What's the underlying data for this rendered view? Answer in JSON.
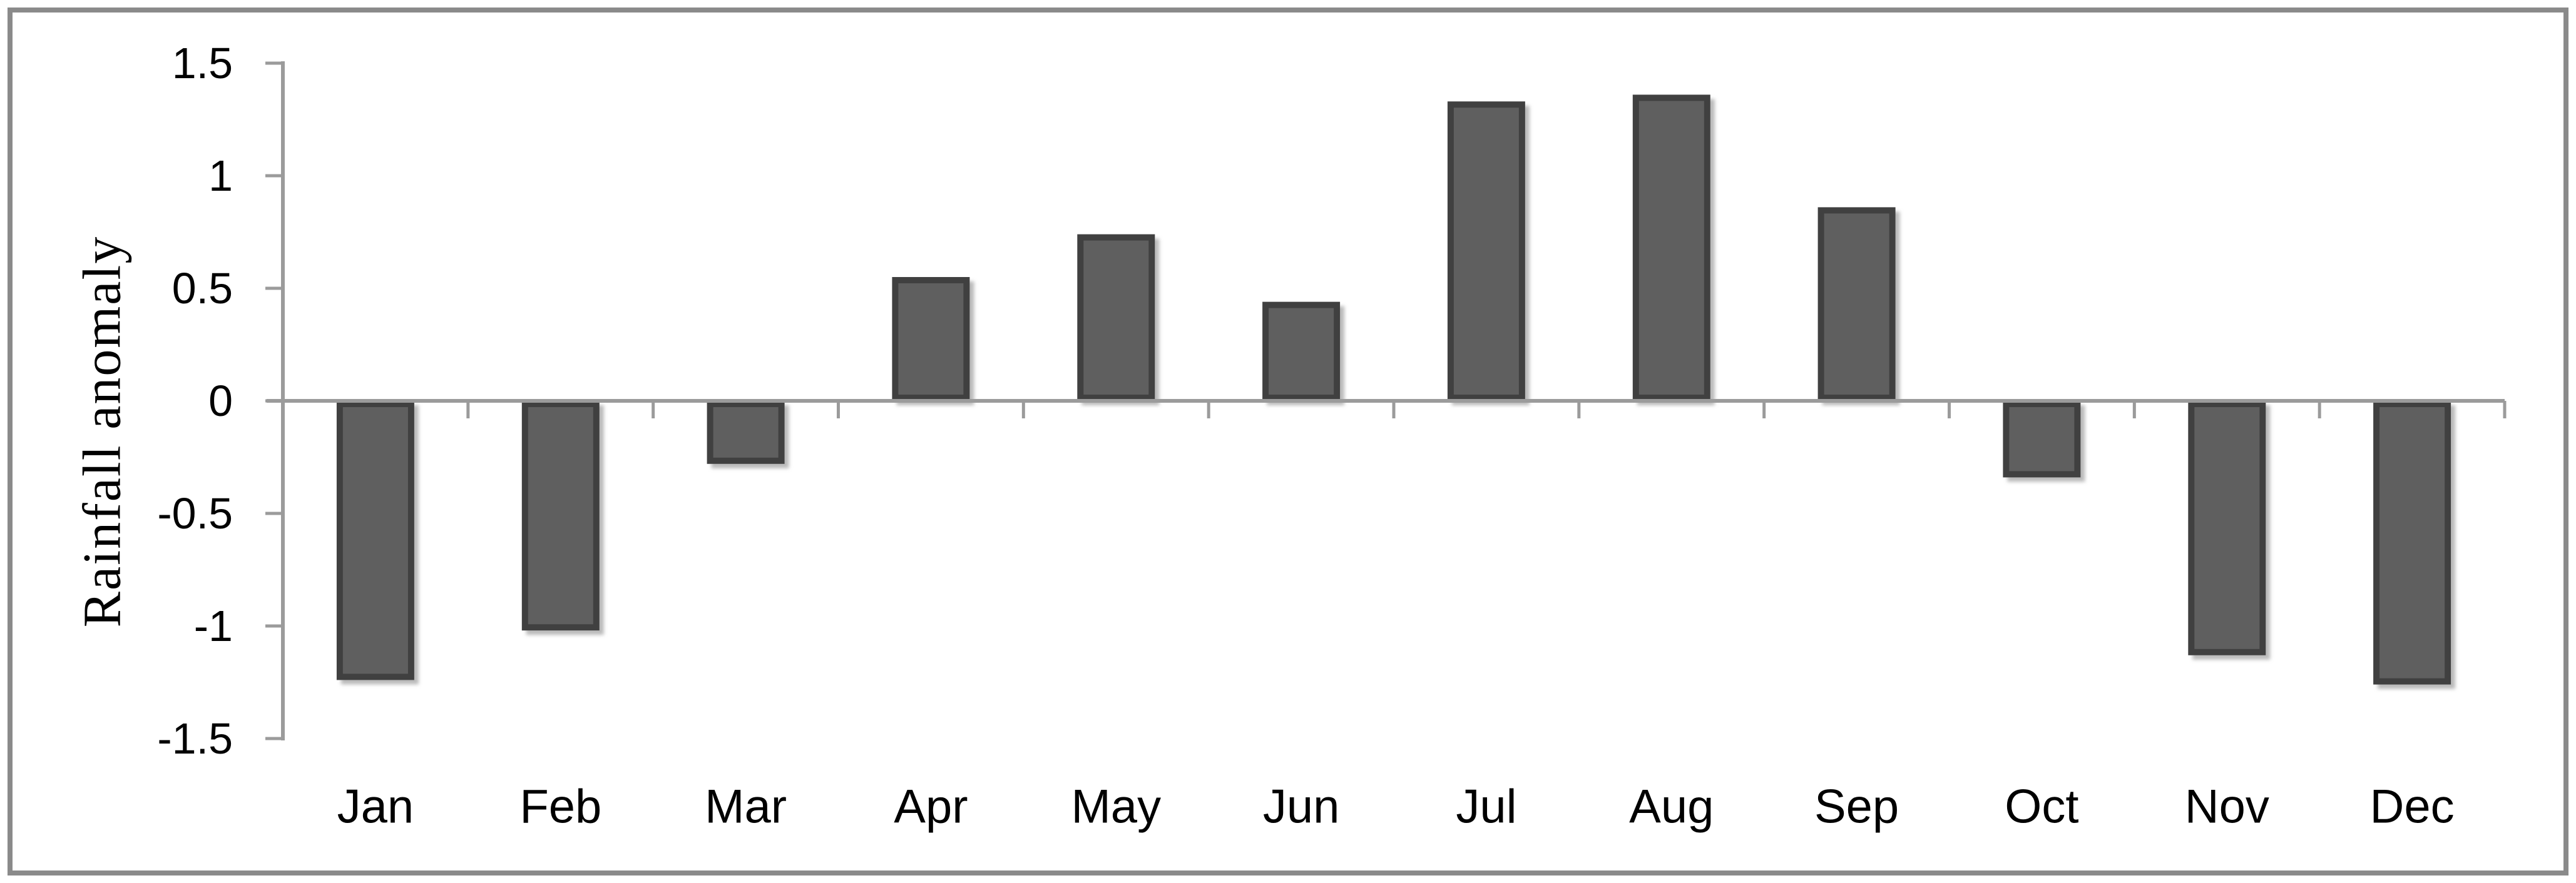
{
  "chart_data": {
    "type": "bar",
    "title": "",
    "ylabel": "Rainfall anomaly",
    "xlabel": "",
    "categories": [
      "Jan",
      "Feb",
      "Mar",
      "Apr",
      "May",
      "Jun",
      "Jul",
      "Aug",
      "Sep",
      "Oct",
      "Nov",
      "Dec"
    ],
    "values": [
      -1.24,
      -1.02,
      -0.28,
      0.55,
      0.74,
      0.44,
      1.33,
      1.36,
      0.86,
      -0.34,
      -1.13,
      -1.26
    ],
    "ylim": [
      -1.5,
      1.5
    ],
    "ytick_step": 0.5,
    "ytick_labels": [
      "1.5",
      "1",
      "0.5",
      "0",
      "-0.5",
      "-1",
      "-1.5"
    ],
    "ytick_values": [
      1.5,
      1,
      0.5,
      0,
      -0.5,
      -1,
      -1.5
    ],
    "grid": "off",
    "legend": "none",
    "colors": {
      "bar_fill": "#5E5E5E",
      "bar_border": "#414141",
      "bar_shadow": "#8c8c8c",
      "axis_line": "#9B9B9B",
      "frame_border": "#8A8A8A",
      "text": "#000000",
      "background": "#FFFFFF"
    }
  }
}
